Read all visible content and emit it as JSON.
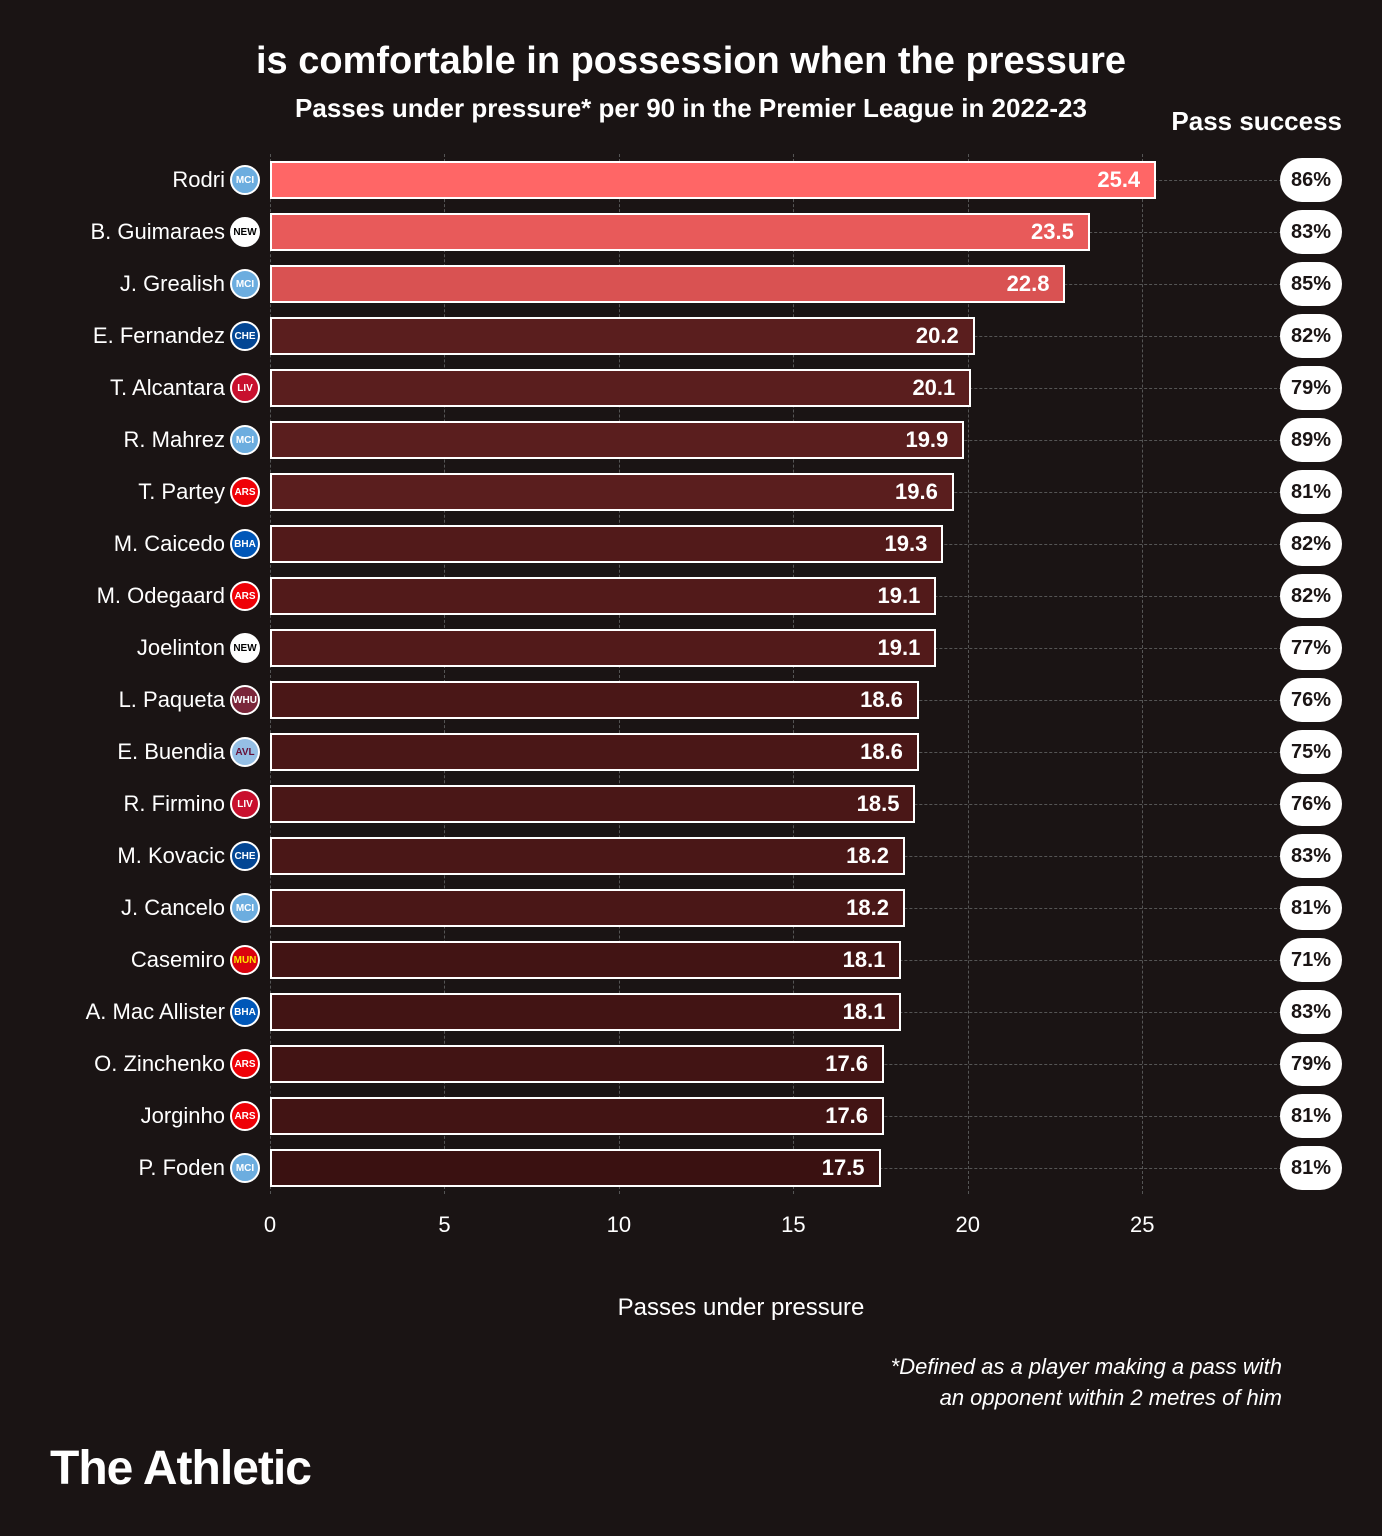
{
  "chart": {
    "type": "bar",
    "title": "is comfortable in possession when the pressure",
    "subtitle": "Passes under pressure* per 90 in the Premier League in 2022-23",
    "x_label": "Passes under pressure",
    "success_header": "Pass success",
    "footnote_line1": "*Defined as a player making a pass with",
    "footnote_line2": "an opponent within 2 metres of him",
    "brand": "The Athletic",
    "background_color": "#1a1414",
    "text_color": "#ffffff",
    "grid_color": "#555555",
    "bar_border_color": "#ffffff",
    "xlim": [
      0,
      27
    ],
    "xticks": [
      0,
      5,
      10,
      15,
      20,
      25
    ],
    "title_fontsize": 38,
    "subtitle_fontsize": 26,
    "label_fontsize": 22,
    "value_fontsize": 22,
    "players": [
      {
        "name": "Rodri",
        "value": 25.4,
        "success": "86%",
        "bar_color": "#ff6666",
        "highlighted": true,
        "team": "MCI",
        "badge_bg": "#6caddf",
        "badge_fg": "#ffffff"
      },
      {
        "name": "B. Guimaraes",
        "value": 23.5,
        "success": "83%",
        "bar_color": "#e85a5a",
        "highlighted": true,
        "team": "NEW",
        "badge_bg": "#ffffff",
        "badge_fg": "#000000"
      },
      {
        "name": "J. Grealish",
        "value": 22.8,
        "success": "85%",
        "bar_color": "#d95252",
        "highlighted": true,
        "team": "MCI",
        "badge_bg": "#6caddf",
        "badge_fg": "#ffffff"
      },
      {
        "name": "E. Fernandez",
        "value": 20.2,
        "success": "82%",
        "bar_color": "#5a1e1e",
        "highlighted": false,
        "team": "CHE",
        "badge_bg": "#034694",
        "badge_fg": "#ffffff"
      },
      {
        "name": "T. Alcantara",
        "value": 20.1,
        "success": "79%",
        "bar_color": "#5a1e1e",
        "highlighted": false,
        "team": "LIV",
        "badge_bg": "#c8102e",
        "badge_fg": "#ffffff"
      },
      {
        "name": "R. Mahrez",
        "value": 19.9,
        "success": "89%",
        "bar_color": "#5a1e1e",
        "highlighted": false,
        "team": "MCI",
        "badge_bg": "#6caddf",
        "badge_fg": "#ffffff"
      },
      {
        "name": "T. Partey",
        "value": 19.6,
        "success": "81%",
        "bar_color": "#5a1e1e",
        "highlighted": false,
        "team": "ARS",
        "badge_bg": "#ef0107",
        "badge_fg": "#ffffff"
      },
      {
        "name": "M. Caicedo",
        "value": 19.3,
        "success": "82%",
        "bar_color": "#521a1a",
        "highlighted": false,
        "team": "BHA",
        "badge_bg": "#0057b8",
        "badge_fg": "#ffffff"
      },
      {
        "name": "M. Odegaard",
        "value": 19.1,
        "success": "82%",
        "bar_color": "#521a1a",
        "highlighted": false,
        "team": "ARS",
        "badge_bg": "#ef0107",
        "badge_fg": "#ffffff"
      },
      {
        "name": "Joelinton",
        "value": 19.1,
        "success": "77%",
        "bar_color": "#521a1a",
        "highlighted": false,
        "team": "NEW",
        "badge_bg": "#ffffff",
        "badge_fg": "#000000"
      },
      {
        "name": "L. Paqueta",
        "value": 18.6,
        "success": "76%",
        "bar_color": "#4a1717",
        "highlighted": false,
        "team": "WHU",
        "badge_bg": "#7a263a",
        "badge_fg": "#ffffff"
      },
      {
        "name": "E. Buendia",
        "value": 18.6,
        "success": "75%",
        "bar_color": "#4a1717",
        "highlighted": false,
        "team": "AVL",
        "badge_bg": "#95bfe5",
        "badge_fg": "#670e36"
      },
      {
        "name": "R. Firmino",
        "value": 18.5,
        "success": "76%",
        "bar_color": "#4a1717",
        "highlighted": false,
        "team": "LIV",
        "badge_bg": "#c8102e",
        "badge_fg": "#ffffff"
      },
      {
        "name": "M. Kovacic",
        "value": 18.2,
        "success": "83%",
        "bar_color": "#4a1717",
        "highlighted": false,
        "team": "CHE",
        "badge_bg": "#034694",
        "badge_fg": "#ffffff"
      },
      {
        "name": "J. Cancelo",
        "value": 18.2,
        "success": "81%",
        "bar_color": "#4a1717",
        "highlighted": false,
        "team": "MCI",
        "badge_bg": "#6caddf",
        "badge_fg": "#ffffff"
      },
      {
        "name": "Casemiro",
        "value": 18.1,
        "success": "71%",
        "bar_color": "#421414",
        "highlighted": false,
        "team": "MUN",
        "badge_bg": "#da020e",
        "badge_fg": "#ffe500"
      },
      {
        "name": "A. Mac Allister",
        "value": 18.1,
        "success": "83%",
        "bar_color": "#421414",
        "highlighted": false,
        "team": "BHA",
        "badge_bg": "#0057b8",
        "badge_fg": "#ffffff"
      },
      {
        "name": "O. Zinchenko",
        "value": 17.6,
        "success": "79%",
        "bar_color": "#421414",
        "highlighted": false,
        "team": "ARS",
        "badge_bg": "#ef0107",
        "badge_fg": "#ffffff"
      },
      {
        "name": "Jorginho",
        "value": 17.6,
        "success": "81%",
        "bar_color": "#421414",
        "highlighted": false,
        "team": "ARS",
        "badge_bg": "#ef0107",
        "badge_fg": "#ffffff"
      },
      {
        "name": "P. Foden",
        "value": 17.5,
        "success": "81%",
        "bar_color": "#3a1111",
        "highlighted": false,
        "team": "MCI",
        "badge_bg": "#6caddf",
        "badge_fg": "#ffffff"
      }
    ]
  }
}
